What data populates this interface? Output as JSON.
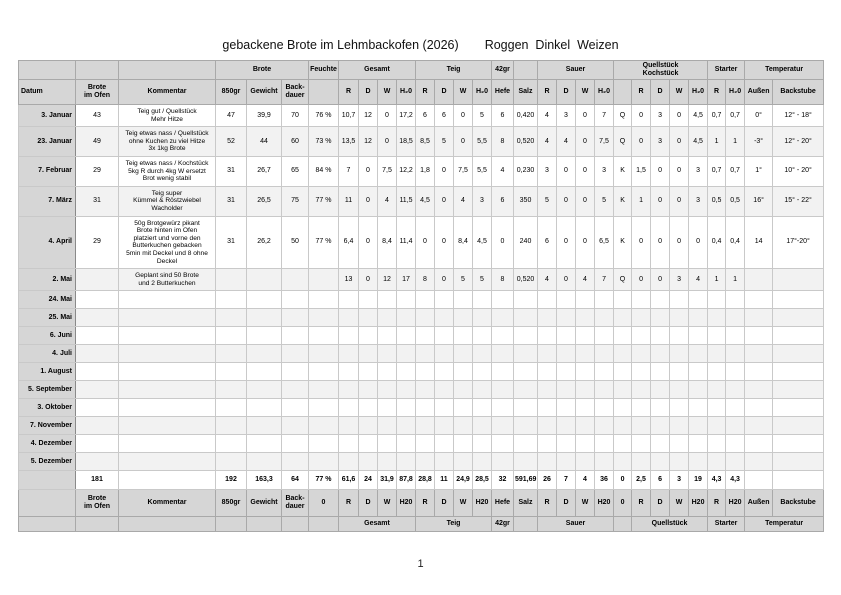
{
  "page": {
    "title_main": "gebackene Brote im Lehmbackofen (2026)",
    "title_tags": "Roggen  Dinkel  Weizen",
    "page_number": "1"
  },
  "colors": {
    "header_bg": "#d6d6d6",
    "row_band": "#f2f2f2",
    "border_light": "#c9c9c9",
    "border_dark": "#8a8a8a"
  },
  "table": {
    "header_groups": [
      {
        "label": "",
        "span": 1
      },
      {
        "label": "",
        "span": 1
      },
      {
        "label": "",
        "span": 1
      },
      {
        "label": "Brote",
        "span": 3
      },
      {
        "label": "Feuchte",
        "span": 1
      },
      {
        "label": "Gesamt",
        "span": 4
      },
      {
        "label": "Teig",
        "span": 4
      },
      {
        "label": "42gr",
        "span": 1
      },
      {
        "label": "",
        "span": 1
      },
      {
        "label": "Sauer",
        "span": 4
      },
      {
        "label": "Quellstück\nKochstück",
        "span": 5
      },
      {
        "label": "Starter",
        "span": 2
      },
      {
        "label": "Temperatur",
        "span": 2
      }
    ],
    "header_columns": [
      "Datum",
      "Brote\nim Ofen",
      "Kommentar",
      "850gr",
      "Gewicht",
      "Back-\ndauer",
      "",
      "R",
      "D",
      "W",
      "H₂0",
      "R",
      "D",
      "W",
      "H₂0",
      "Hefe",
      "Salz",
      "R",
      "D",
      "W",
      "H₂0",
      "",
      "R",
      "D",
      "W",
      "H₂0",
      "R",
      "H₂0",
      "Außen",
      "Backstube"
    ],
    "rows": [
      {
        "date": "3. Januar",
        "ofen": "43",
        "comment": "Teig gut / Quellstück\nMehr Hitze",
        "cells": [
          "47",
          "39,9",
          "70",
          "76 %",
          "10,7",
          "12",
          "0",
          "17,2",
          "6",
          "6",
          "0",
          "5",
          "6",
          "0,420",
          "4",
          "3",
          "0",
          "7",
          "Q",
          "0",
          "3",
          "0",
          "4,5",
          "0,7",
          "0,7",
          "0°",
          "12° - 18°"
        ]
      },
      {
        "date": "23. Januar",
        "ofen": "49",
        "comment": "Teig etwas nass / Quellstück\nohne Kuchen zu viel Hitze\n3x 1kg Brote",
        "cells": [
          "52",
          "44",
          "60",
          "73 %",
          "13,5",
          "12",
          "0",
          "18,5",
          "8,5",
          "5",
          "0",
          "5,5",
          "8",
          "0,520",
          "4",
          "4",
          "0",
          "7,5",
          "Q",
          "0",
          "3",
          "0",
          "4,5",
          "1",
          "1",
          "-3°",
          "12° - 20°"
        ]
      },
      {
        "date": "7. Februar",
        "ofen": "29",
        "comment": "Teig etwas nass / Kochstück\n5kg R durch 4kg W ersetzt\nBrot wenig stabil",
        "cells": [
          "31",
          "26,7",
          "65",
          "84 %",
          "7",
          "0",
          "7,5",
          "12,2",
          "1,8",
          "0",
          "7,5",
          "5,5",
          "4",
          "0,230",
          "3",
          "0",
          "0",
          "3",
          "K",
          "1,5",
          "0",
          "0",
          "3",
          "0,7",
          "0,7",
          "1°",
          "10° - 20°"
        ]
      },
      {
        "date": "7. März",
        "ofen": "31",
        "comment": "Teig super\nKümmel & Röstzwiebel\nWacholder",
        "cells": [
          "31",
          "26,5",
          "75",
          "77 %",
          "11",
          "0",
          "4",
          "11,5",
          "4,5",
          "0",
          "4",
          "3",
          "6",
          "350",
          "5",
          "0",
          "0",
          "5",
          "K",
          "1",
          "0",
          "0",
          "3",
          "0,5",
          "0,5",
          "16°",
          "15° - 22°"
        ]
      },
      {
        "date": "4. April",
        "ofen": "29",
        "comment": "50g Brotgewürz pikant\nBrote hinten im Ofen\nplatziert und vorne den\nButterkuchen gebacken\n5min mit Deckel und 8 ohne\nDeckel",
        "cells": [
          "31",
          "26,2",
          "50",
          "77 %",
          "6,4",
          "0",
          "8,4",
          "11,4",
          "0",
          "0",
          "8,4",
          "4,5",
          "0",
          "240",
          "6",
          "0",
          "0",
          "6,5",
          "K",
          "0",
          "0",
          "0",
          "0",
          "0,4",
          "0,4",
          "14",
          "17°-20°"
        ]
      },
      {
        "date": "2. Mai",
        "ofen": "",
        "comment": "Geplant sind 50 Brote\nund 2 Butterkuchen",
        "cells": [
          "",
          "",
          "",
          "",
          "13",
          "0",
          "12",
          "17",
          "8",
          "0",
          "5",
          "5",
          "8",
          "0,520",
          "4",
          "0",
          "4",
          "7",
          "Q",
          "0",
          "0",
          "3",
          "4",
          "1",
          "1",
          "",
          ""
        ]
      },
      {
        "date": "24. Mai",
        "ofen": "",
        "comment": "",
        "cells": []
      },
      {
        "date": "25. Mai",
        "ofen": "",
        "comment": "",
        "cells": []
      },
      {
        "date": "6. Juni",
        "ofen": "",
        "comment": "",
        "cells": []
      },
      {
        "date": "4. Juli",
        "ofen": "",
        "comment": "",
        "cells": []
      },
      {
        "date": "1. August",
        "ofen": "",
        "comment": "",
        "cells": []
      },
      {
        "date": "5. September",
        "ofen": "",
        "comment": "",
        "cells": []
      },
      {
        "date": "3. Oktober",
        "ofen": "",
        "comment": "",
        "cells": []
      },
      {
        "date": "7. November",
        "ofen": "",
        "comment": "",
        "cells": []
      },
      {
        "date": "4. Dezember",
        "ofen": "",
        "comment": "",
        "cells": []
      },
      {
        "date": "5. Dezember",
        "ofen": "",
        "comment": "",
        "cells": []
      }
    ],
    "totals": {
      "date": "",
      "ofen": "181",
      "comment": "",
      "cells": [
        "192",
        "163,3",
        "64",
        "77 %",
        "61,6",
        "24",
        "31,9",
        "87,8",
        "28,8",
        "11",
        "24,9",
        "28,5",
        "32",
        "591,69",
        "26",
        "7",
        "4",
        "36",
        "0",
        "2,5",
        "6",
        "3",
        "19",
        "4,3",
        "4,3",
        "",
        ""
      ]
    },
    "footer_columns": [
      "",
      "Brote\nim Ofen",
      "Kommentar",
      "850gr",
      "Gewicht",
      "Back-\ndauer",
      "0",
      "R",
      "D",
      "W",
      "H20",
      "R",
      "D",
      "W",
      "H20",
      "Hefe",
      "Salz",
      "R",
      "D",
      "W",
      "H20",
      "0",
      "R",
      "D",
      "W",
      "H20",
      "R",
      "H20",
      "Außen",
      "Backstube"
    ],
    "footer_groups": [
      {
        "label": "",
        "span": 1
      },
      {
        "label": "",
        "span": 1
      },
      {
        "label": "",
        "span": 1
      },
      {
        "label": "",
        "span": 1
      },
      {
        "label": "",
        "span": 1
      },
      {
        "label": "",
        "span": 1
      },
      {
        "label": "",
        "span": 1
      },
      {
        "label": "Gesamt",
        "span": 4
      },
      {
        "label": "Teig",
        "span": 4
      },
      {
        "label": "42gr",
        "span": 1
      },
      {
        "label": "",
        "span": 1
      },
      {
        "label": "Sauer",
        "span": 4
      },
      {
        "label": "",
        "span": 1
      },
      {
        "label": "Quellstück",
        "span": 4
      },
      {
        "label": "Starter",
        "span": 2
      },
      {
        "label": "Temperatur",
        "span": 2
      }
    ]
  }
}
